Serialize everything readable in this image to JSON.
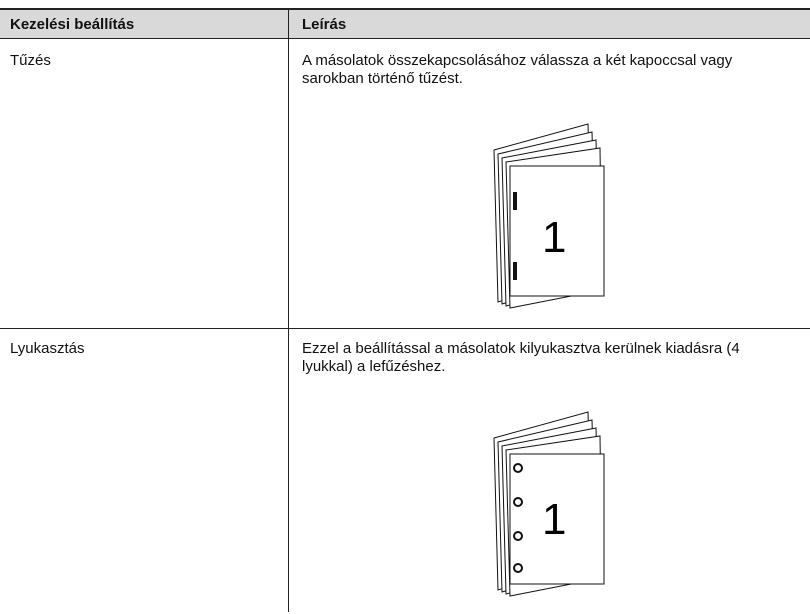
{
  "table": {
    "header": [
      "Kezelési beállítás",
      "Leírás"
    ],
    "rows": [
      {
        "setting": "Tűzés",
        "description": "A másolatok összekapcsolásához válassza a két kapoccsal vagy sarokban történő tűzést.",
        "figure_label": "1"
      },
      {
        "setting": "Lyukasztás",
        "description": "Ezzel a beállítással a másolatok kilyukasztva kerülnek kiadásra (4 lyukkal) a lefűzéshez.",
        "figure_label": "1"
      }
    ]
  }
}
